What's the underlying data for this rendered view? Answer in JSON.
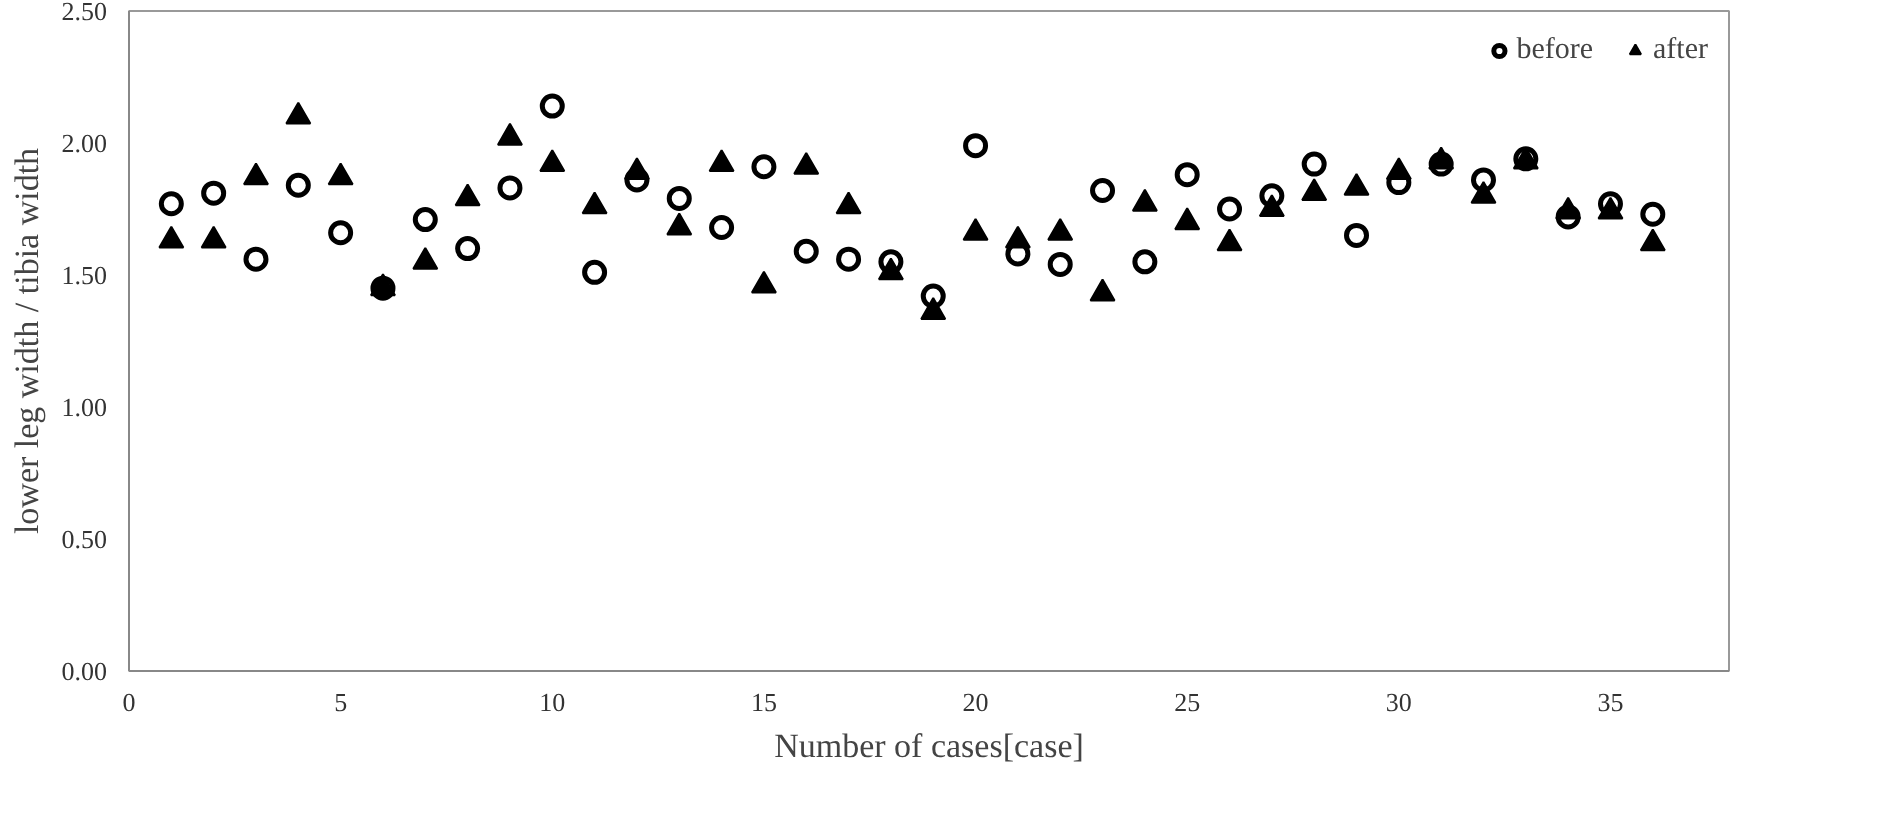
{
  "chart_data": {
    "type": "scatter",
    "xlabel": "Number of cases[case]",
    "ylabel": "lower leg width / tibia width",
    "x": [
      1,
      2,
      3,
      4,
      5,
      6,
      7,
      8,
      9,
      10,
      11,
      12,
      13,
      14,
      15,
      16,
      17,
      18,
      19,
      20,
      21,
      22,
      23,
      24,
      25,
      26,
      27,
      28,
      29,
      30,
      31,
      32,
      33,
      34,
      35,
      36
    ],
    "series": [
      {
        "name": "before",
        "color": "#000000",
        "marker": "circle",
        "values": [
          1.77,
          1.81,
          1.56,
          1.84,
          1.66,
          1.45,
          1.71,
          1.6,
          1.83,
          2.14,
          1.51,
          1.86,
          1.79,
          1.68,
          1.91,
          1.59,
          1.56,
          1.55,
          1.42,
          1.99,
          1.58,
          1.54,
          1.82,
          1.55,
          1.88,
          1.75,
          1.8,
          1.92,
          1.65,
          1.85,
          1.92,
          1.86,
          1.94,
          1.72,
          1.77,
          1.73
        ]
      },
      {
        "name": "after",
        "color": "#000000",
        "marker": "triangle",
        "values": [
          1.63,
          1.63,
          1.87,
          2.1,
          1.87,
          1.45,
          1.55,
          1.79,
          2.02,
          1.92,
          1.76,
          1.89,
          1.68,
          1.92,
          1.46,
          1.91,
          1.76,
          1.51,
          1.36,
          1.66,
          1.63,
          1.66,
          1.43,
          1.77,
          1.7,
          1.62,
          1.75,
          1.81,
          1.83,
          1.89,
          1.93,
          1.8,
          1.93,
          1.74,
          1.74,
          1.62
        ]
      }
    ],
    "xlim": [
      0,
      37.8
    ],
    "xticks": [
      0,
      5,
      10,
      15,
      20,
      25,
      30,
      35
    ],
    "ylim": [
      0,
      2.5
    ],
    "yticks": [
      {
        "value": 0,
        "label": "0.00"
      },
      {
        "value": 0.5,
        "label": "0.50"
      },
      {
        "value": 1,
        "label": "1.00"
      },
      {
        "value": 1.5,
        "label": "1.50"
      },
      {
        "value": 2,
        "label": "2.00"
      },
      {
        "value": 2.5,
        "label": "2.50"
      }
    ],
    "grid": false,
    "legend": "top right"
  }
}
